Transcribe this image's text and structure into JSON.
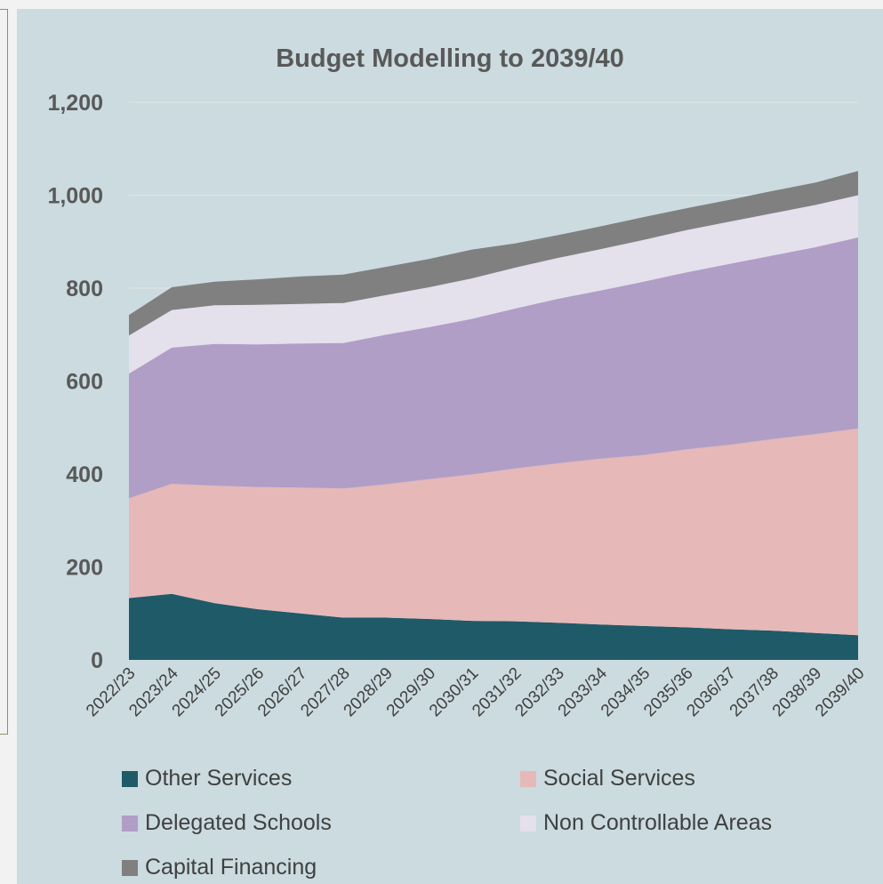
{
  "chart_data": {
    "type": "area",
    "stacked": true,
    "title": "Budget Modelling to 2039/40",
    "categories": [
      "2022/23",
      "2023/24",
      "2024/25",
      "2025/26",
      "2026/27",
      "2027/28",
      "2028/29",
      "2029/30",
      "2030/31",
      "2031/32",
      "2032/33",
      "2033/34",
      "2034/35",
      "2035/36",
      "2036/37",
      "2037/38",
      "2038/39",
      "2039/40"
    ],
    "ylim": [
      0,
      1200
    ],
    "yticks": [
      0,
      200,
      400,
      600,
      800,
      1000,
      1200
    ],
    "ytick_labels": [
      "0",
      "200",
      "400",
      "600",
      "800",
      "1,000",
      "1,200"
    ],
    "grid": true,
    "legend_position": "bottom",
    "series": [
      {
        "name": "Other Services",
        "color": "#1f5a68",
        "values": [
          133,
          142,
          122,
          109,
          100,
          91,
          91,
          88,
          84,
          83,
          80,
          76,
          73,
          70,
          66,
          63,
          58,
          53
        ]
      },
      {
        "name": "Social Services",
        "color": "#e6b8b8",
        "values": [
          215,
          237,
          253,
          263,
          271,
          278,
          287,
          301,
          315,
          329,
          343,
          357,
          368,
          383,
          397,
          412,
          428,
          445
        ]
      },
      {
        "name": "Delegated Schools",
        "color": "#b09ec7",
        "values": [
          268,
          293,
          305,
          307,
          310,
          313,
          322,
          327,
          335,
          344,
          354,
          362,
          373,
          381,
          389,
          395,
          402,
          411
        ]
      },
      {
        "name": "Non Controllable Areas",
        "color": "#e4e0ec",
        "values": [
          82,
          81,
          83,
          85,
          85,
          86,
          85,
          86,
          87,
          88,
          88,
          89,
          90,
          91,
          91,
          91,
          91,
          91
        ]
      },
      {
        "name": "Capital Financing",
        "color": "#808080",
        "values": [
          44,
          49,
          51,
          55,
          59,
          61,
          61,
          61,
          62,
          52,
          49,
          49,
          49,
          47,
          47,
          48,
          48,
          52
        ]
      }
    ]
  }
}
